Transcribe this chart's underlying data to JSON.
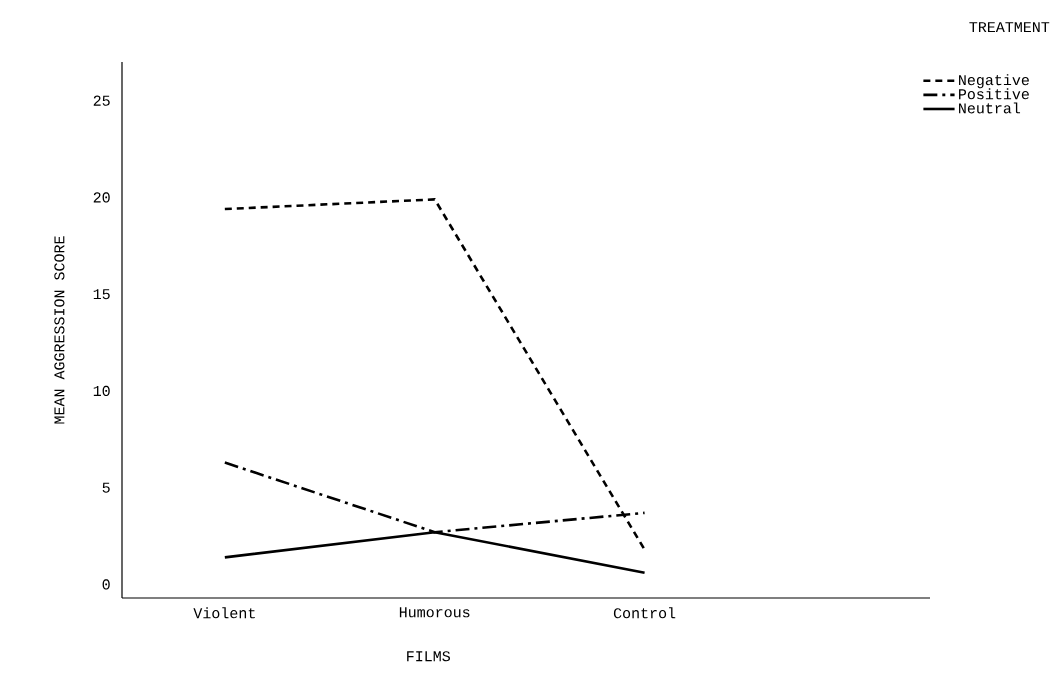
{
  "chart_data": {
    "type": "line",
    "xlabel": "FILMS",
    "ylabel": "MEAN AGGRESSION SCORE",
    "legend_title": "TREATMENT",
    "categories": [
      "Violent",
      "Humorous",
      "Control"
    ],
    "series": [
      {
        "name": "Negative",
        "color": "#000000",
        "line_style": "dashed",
        "values": [
          19.4,
          19.9,
          1.8
        ]
      },
      {
        "name": "Positive",
        "color": "#000000",
        "line_style": "dashdot",
        "values": [
          6.3,
          2.7,
          3.7
        ]
      },
      {
        "name": "Neutral",
        "color": "#000000",
        "line_style": "solid",
        "values": [
          1.4,
          2.7,
          0.6
        ]
      }
    ],
    "ylim": [
      -0.7,
      27
    ],
    "yticks": [
      0,
      5,
      10,
      15,
      20,
      25
    ],
    "legend": "top right",
    "grid": false
  }
}
